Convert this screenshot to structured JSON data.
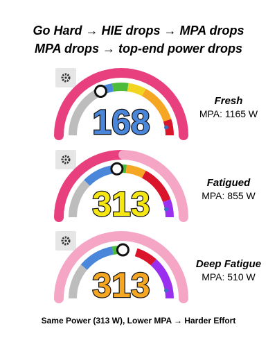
{
  "header": {
    "lines": [
      "Go Hard → HIE drops → MPA drops",
      "MPA drops → top-end power drops"
    ]
  },
  "gauges": [
    {
      "value": 168,
      "state": "Fresh",
      "mpa": "MPA: 1165 W"
    },
    {
      "value": 313,
      "state": "Fatigued",
      "mpa": "MPA: 855 W"
    },
    {
      "value": 313,
      "state": "Deep Fatigue",
      "mpa": "MPA: 510 W"
    }
  ],
  "footer": "Same Power (313 W), Lower MPA → Harder Effort"
}
